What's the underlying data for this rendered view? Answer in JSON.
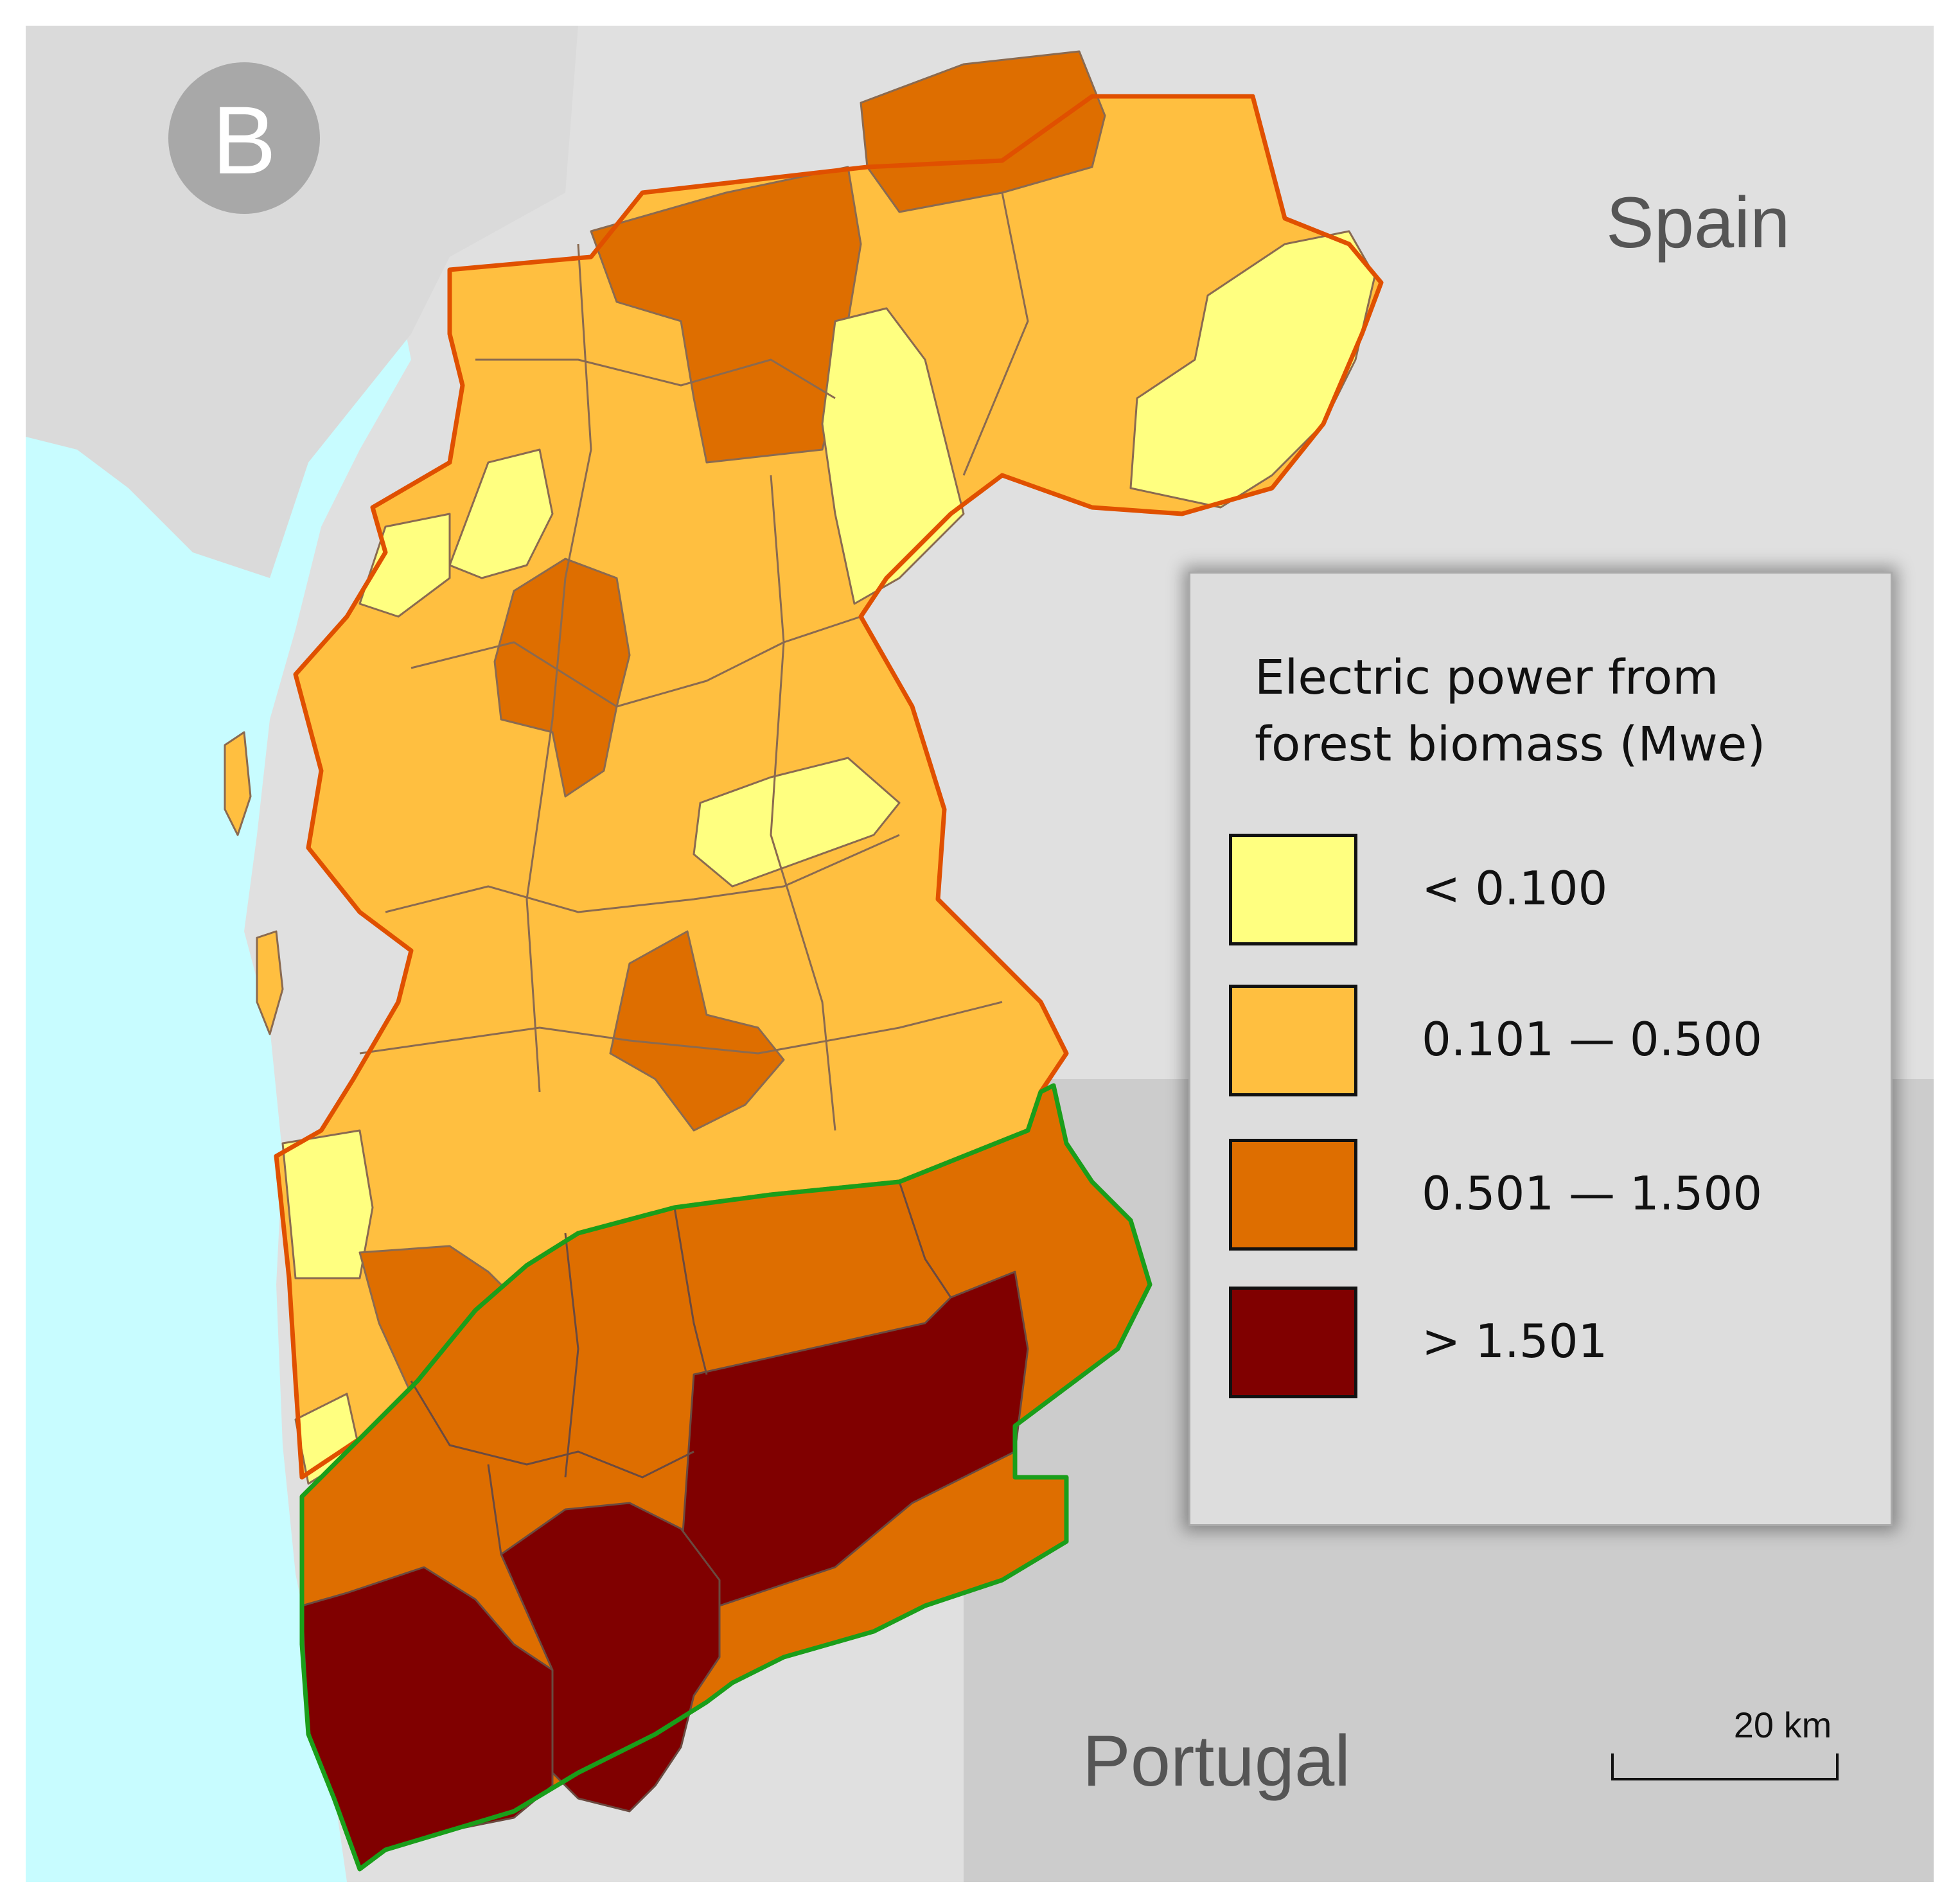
{
  "panel_label": "B",
  "countries": {
    "north": "Spain",
    "south": "Portugal"
  },
  "legend": {
    "title_line1": "Electric power from",
    "title_line2": "forest biomass (Mwe)",
    "classes": [
      {
        "label": "< 0.100",
        "color": "#ffff80"
      },
      {
        "label": "0.101 — 0.500",
        "color": "#ffbf40"
      },
      {
        "label": "0.501 — 1.500",
        "color": "#de6e00"
      },
      {
        "label": "> 1.501",
        "color": "#800000"
      }
    ]
  },
  "scale_bar": {
    "label": "20 km"
  },
  "colors": {
    "sea": "#c8fcff",
    "spain_background": "#e0e0e0",
    "portugal_background": "#cccccc",
    "coast_land": "#dadada",
    "galicia_border": "#e05000",
    "portugal_border": "#1a9e1a",
    "municipal_boundary": "#8a6a50"
  }
}
